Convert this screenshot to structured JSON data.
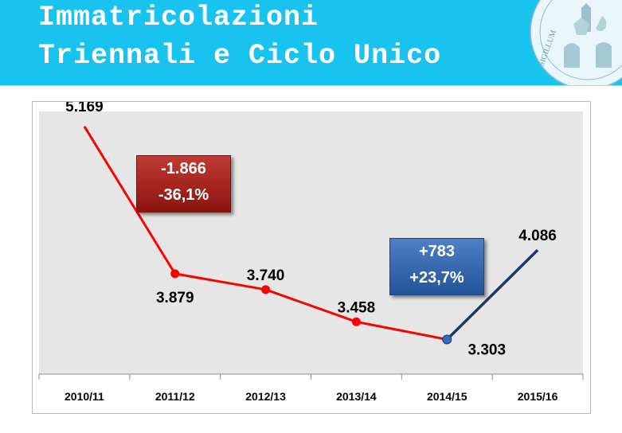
{
  "header": {
    "title_line1": "Immatricolazioni",
    "title_line2": "Triennali e Ciclo Unico",
    "seal_text": "SIGILLUM"
  },
  "callouts": {
    "drop": {
      "line1": "-1.866",
      "line2": "-36,1%"
    },
    "rise": {
      "line1": "+783",
      "line2": "+23,7%"
    }
  },
  "colors": {
    "header_bg": "#18c3f0",
    "decline_line": "#ff0000",
    "rise_line": "#1f3864",
    "plot_bg": "#e6e6e6"
  },
  "chart_data": {
    "type": "line",
    "categories": [
      "2010/11",
      "2011/12",
      "2012/13",
      "2013/14",
      "2014/15",
      "2015/16"
    ],
    "values": [
      5169,
      3879,
      3740,
      3458,
      3303,
      4086
    ],
    "value_labels": [
      "5.169",
      "3.879",
      "3.740",
      "3.458",
      "3.303",
      "4.086"
    ],
    "ylim": [
      3000,
      5300
    ],
    "grid": false,
    "legend": "none",
    "segments": [
      {
        "from": 0,
        "to": 4,
        "color": "#ff0000"
      },
      {
        "from": 4,
        "to": 5,
        "color": "#1f3864"
      }
    ]
  }
}
